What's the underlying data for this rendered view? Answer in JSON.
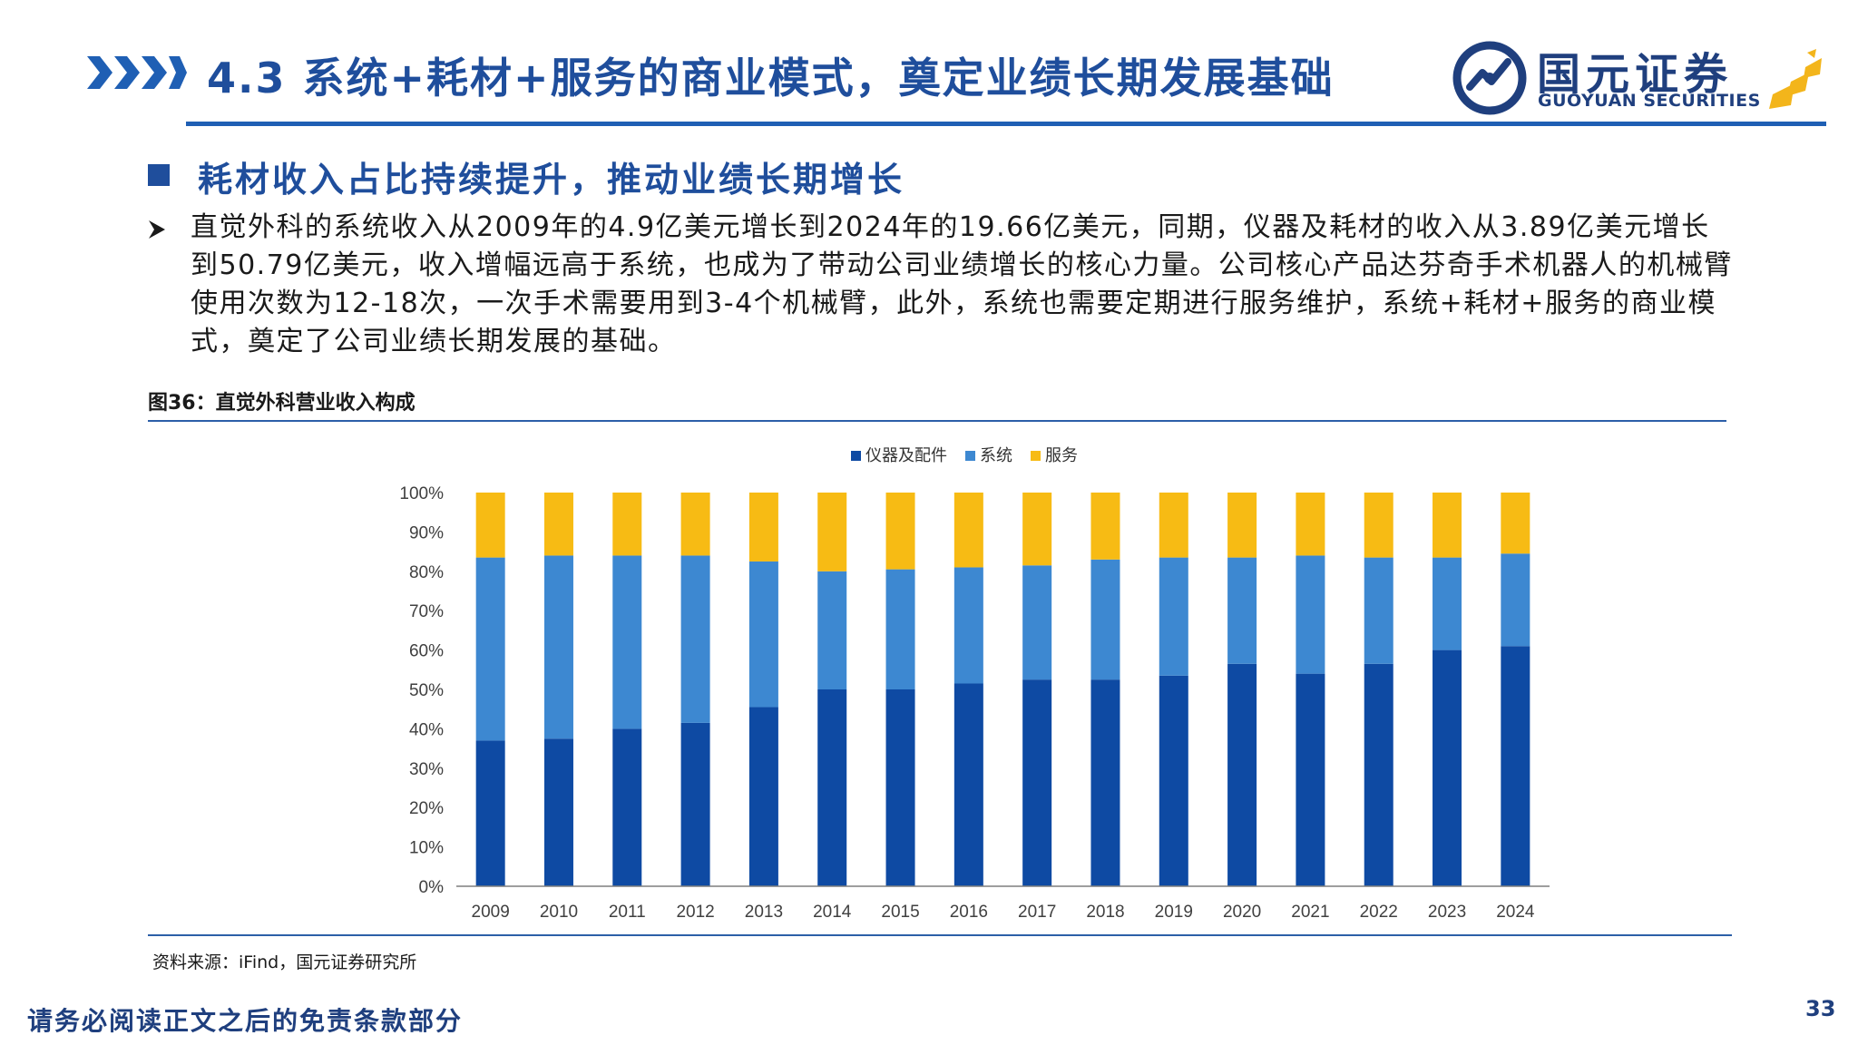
{
  "header": {
    "title": "4.3 系统+耗材+服务的商业模式，奠定业绩长期发展基础"
  },
  "logo": {
    "name_cn": "国元证券",
    "name_en": "GUOYUAN SECURITIES"
  },
  "section": {
    "subtitle": "耗材收入占比持续提升，推动业绩长期增长",
    "body": "直觉外科的系统收入从2009年的4.9亿美元增长到2024年的19.66亿美元，同期，仪器及耗材的收入从3.89亿美元增长到50.79亿美元，收入增幅远高于系统，也成为了带动公司业绩增长的核心力量。公司核心产品达芬奇手术机器人的机械臂使用次数为12-18次，一次手术需要用到3-4个机械臂，此外，系统也需要定期进行服务维护，系统+耗材+服务的商业模式，奠定了公司业绩长期发展的基础。"
  },
  "figure": {
    "title": "图36：直觉外科营业收入构成",
    "source": "资料来源：iFind，国元证券研究所"
  },
  "chart_data": {
    "type": "bar",
    "stacked": true,
    "categories": [
      "2009",
      "2010",
      "2011",
      "2012",
      "2013",
      "2014",
      "2015",
      "2016",
      "2017",
      "2018",
      "2019",
      "2020",
      "2021",
      "2022",
      "2023",
      "2024"
    ],
    "series": [
      {
        "name": "仪器及配件",
        "color": "#0e4aa3",
        "values": [
          37,
          37.5,
          40,
          41.5,
          45.5,
          50,
          50,
          51.5,
          52.5,
          52.5,
          53.5,
          56.5,
          54,
          56.5,
          60,
          61
        ]
      },
      {
        "name": "系统",
        "color": "#3d88d1",
        "values": [
          46.5,
          46.5,
          44,
          42.5,
          37,
          30,
          30.5,
          29.5,
          29,
          30.5,
          30,
          27,
          30,
          27,
          23.5,
          23.5
        ]
      },
      {
        "name": "服务",
        "color": "#f7bb14",
        "values": [
          16.5,
          16,
          16,
          16,
          17.5,
          20,
          19.5,
          19,
          18.5,
          17,
          16.5,
          16.5,
          16,
          16.5,
          16.5,
          15.5
        ]
      }
    ],
    "ylim": [
      0,
      100
    ],
    "yticks": [
      "0%",
      "10%",
      "20%",
      "30%",
      "40%",
      "50%",
      "60%",
      "70%",
      "80%",
      "90%",
      "100%"
    ],
    "legend_position": "top",
    "grid": false
  },
  "footer": {
    "disclaimer": "请务必阅读正文之后的免责条款部分",
    "page_number": "33"
  },
  "colors": {
    "brand_blue": "#1f4e9c",
    "rule_blue": "#2c5fa8",
    "logo_gold": "#f3b51b"
  }
}
